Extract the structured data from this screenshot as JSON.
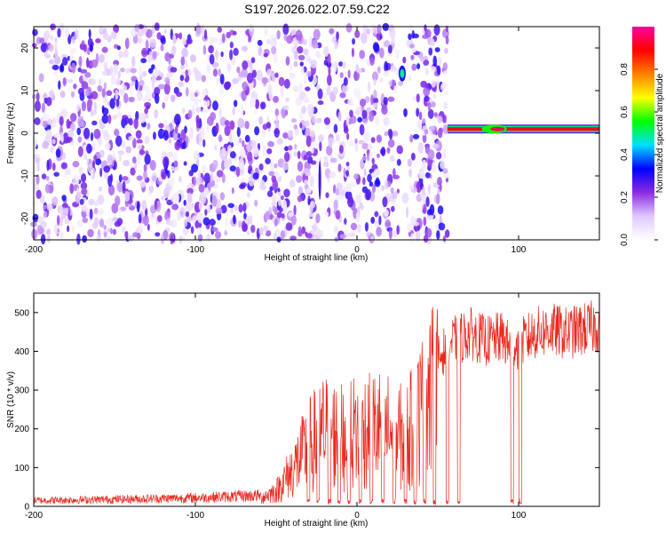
{
  "title": "S197.2026.022.07.59.C22",
  "chart_data": [
    {
      "type": "heatmap",
      "title": "S197.2026.022.07.59.C22",
      "xlabel": "Height of straight line (km)",
      "ylabel": "Frequency (Hz)",
      "xlim": [
        -200,
        150
      ],
      "ylim": [
        -25,
        25
      ],
      "xticks": [
        -200,
        -100,
        0,
        100
      ],
      "yticks": [
        -20,
        -10,
        0,
        10,
        20
      ],
      "colorbar": {
        "label": "Normalized spectral amplitude",
        "range": [
          0.0,
          1.0
        ],
        "ticks": [
          0.0,
          0.2,
          0.4,
          0.6,
          0.8
        ],
        "tick_labels": [
          "0.0",
          "0.2",
          "0.4",
          "0.6",
          "0.8"
        ],
        "colormap": [
          "#ffffff",
          "#e0c8ff",
          "#8a2be2",
          "#0000ff",
          "#00e0ff",
          "#00ff00",
          "#ffff00",
          "#ff8000",
          "#ff0000",
          "#ff00a0"
        ]
      },
      "features": [
        {
          "desc": "noise region",
          "x_range": [
            -200,
            56
          ],
          "freq_range": [
            -25,
            25
          ],
          "amplitude": 0.1
        },
        {
          "desc": "signal band",
          "x_range": [
            56,
            150
          ],
          "freq_center": 1,
          "amplitude": 0.9
        },
        {
          "desc": "blob",
          "x": 28,
          "freq": 14,
          "amplitude": 0.5
        }
      ]
    },
    {
      "type": "line",
      "xlabel": "Height of straight line (km)",
      "ylabel": "SNR (10 * v/v)",
      "xlim": [
        -200,
        150
      ],
      "ylim": [
        0,
        550
      ],
      "xticks": [
        -200,
        -100,
        0,
        100
      ],
      "yticks": [
        0,
        100,
        200,
        300,
        400,
        500
      ],
      "series": [
        {
          "name": "SNR",
          "color": "#e8281e",
          "envelope": {
            "x": [
              -200,
              -150,
              -100,
              -60,
              -50,
              -40,
              -30,
              -20,
              -10,
              0,
              10,
              20,
              30,
              40,
              48,
              55,
              60,
              70,
              80,
              90,
              95,
              100,
              110,
              120,
              130,
              140,
              150
            ],
            "y": [
              15,
              18,
              22,
              28,
              50,
              120,
              200,
              250,
              230,
              250,
              260,
              250,
              220,
              320,
              380,
              420,
              440,
              460,
              440,
              450,
              420,
              430,
              460,
              470,
              460,
              470,
              480
            ]
          },
          "dips_x": [
            -30,
            -24,
            -17,
            -11,
            -5,
            2,
            9,
            16,
            23,
            30,
            36,
            42,
            48,
            56,
            63,
            96,
            101
          ]
        }
      ]
    }
  ]
}
